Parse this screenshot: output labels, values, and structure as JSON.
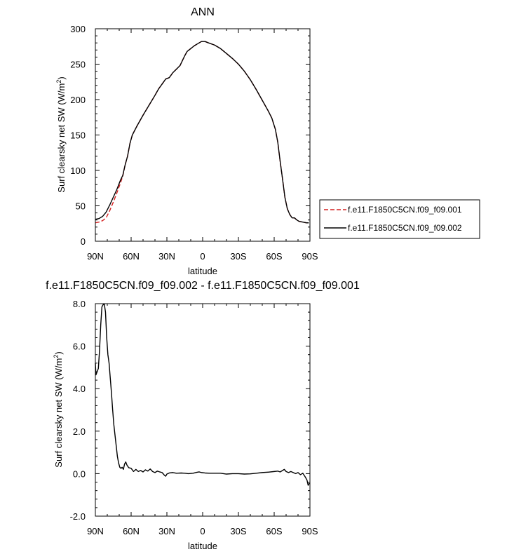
{
  "chart_data": [
    {
      "type": "line",
      "title": "ANN",
      "xlabel": "latitude",
      "ylabel_main": "Surf clearsky net SW (W/m",
      "ylabel_sup": "2",
      "ylabel_close": ")",
      "xlim": [
        90,
        -90
      ],
      "ylim": [
        0,
        300
      ],
      "x_ticks": [
        {
          "value": 90,
          "label": "90N"
        },
        {
          "value": 60,
          "label": "60N"
        },
        {
          "value": 30,
          "label": "30N"
        },
        {
          "value": 0,
          "label": "0"
        },
        {
          "value": -30,
          "label": "30S"
        },
        {
          "value": -60,
          "label": "60S"
        },
        {
          "value": -90,
          "label": "90S"
        }
      ],
      "y_ticks": [
        {
          "value": 0,
          "label": "0"
        },
        {
          "value": 50,
          "label": "50"
        },
        {
          "value": 100,
          "label": "100"
        },
        {
          "value": 150,
          "label": "150"
        },
        {
          "value": 200,
          "label": "200"
        },
        {
          "value": 250,
          "label": "250"
        },
        {
          "value": 300,
          "label": "300"
        }
      ],
      "legend_position": "right",
      "series": [
        {
          "name": "f.e11.F1850C5CN.f09_f09.001",
          "color": "#d42020",
          "dash": "dashed",
          "points": [
            [
              90,
              26
            ],
            [
              87,
              27
            ],
            [
              84,
              29
            ],
            [
              81,
              33
            ],
            [
              78,
              43
            ],
            [
              75,
              55
            ],
            [
              72,
              68
            ],
            [
              69,
              82
            ],
            [
              67,
              92
            ],
            [
              65,
              108
            ],
            [
              63,
              120
            ],
            [
              61,
              138
            ],
            [
              59,
              150
            ],
            [
              55,
              163
            ],
            [
              50,
              178
            ],
            [
              45,
              192
            ],
            [
              40,
              206
            ],
            [
              37,
              215
            ],
            [
              34,
              222
            ],
            [
              31,
              229
            ],
            [
              28,
              231
            ],
            [
              25,
              238
            ],
            [
              22,
              243
            ],
            [
              19,
              248
            ],
            [
              17,
              255
            ],
            [
              15,
              262
            ],
            [
              13,
              268
            ],
            [
              10,
              272
            ],
            [
              7,
              276
            ],
            [
              4,
              279
            ],
            [
              1,
              282
            ],
            [
              -2,
              282
            ],
            [
              -5,
              280
            ],
            [
              -10,
              277
            ],
            [
              -15,
              272
            ],
            [
              -20,
              265
            ],
            [
              -25,
              258
            ],
            [
              -30,
              250
            ],
            [
              -35,
              240
            ],
            [
              -40,
              228
            ],
            [
              -45,
              214
            ],
            [
              -50,
              199
            ],
            [
              -55,
              184
            ],
            [
              -58,
              174
            ],
            [
              -61,
              158
            ],
            [
              -63,
              140
            ],
            [
              -65,
              113
            ],
            [
              -67,
              88
            ],
            [
              -69,
              62
            ],
            [
              -71,
              46
            ],
            [
              -73,
              38
            ],
            [
              -75,
              33
            ],
            [
              -77,
              33
            ],
            [
              -79,
              30
            ],
            [
              -81,
              28
            ],
            [
              -84,
              27
            ],
            [
              -87,
              26
            ],
            [
              -89,
              26
            ]
          ]
        },
        {
          "name": "f.e11.F1850C5CN.f09_f09.002",
          "color": "#000000",
          "dash": "solid",
          "points": [
            [
              90,
              31
            ],
            [
              87,
              32
            ],
            [
              84,
              35
            ],
            [
              81,
              41
            ],
            [
              78,
              51
            ],
            [
              75,
              62
            ],
            [
              72,
              73
            ],
            [
              69,
              86
            ],
            [
              67,
              93
            ],
            [
              65,
              108
            ],
            [
              63,
              120
            ],
            [
              61,
              138
            ],
            [
              59,
              150
            ],
            [
              55,
              163
            ],
            [
              50,
              178
            ],
            [
              45,
              192
            ],
            [
              40,
              206
            ],
            [
              37,
              215
            ],
            [
              34,
              222
            ],
            [
              31,
              229
            ],
            [
              28,
              231
            ],
            [
              25,
              238
            ],
            [
              22,
              243
            ],
            [
              19,
              248
            ],
            [
              17,
              255
            ],
            [
              15,
              262
            ],
            [
              13,
              268
            ],
            [
              10,
              272
            ],
            [
              7,
              276
            ],
            [
              4,
              279
            ],
            [
              1,
              282
            ],
            [
              -2,
              282
            ],
            [
              -5,
              280
            ],
            [
              -10,
              277
            ],
            [
              -15,
              272
            ],
            [
              -20,
              265
            ],
            [
              -25,
              258
            ],
            [
              -30,
              250
            ],
            [
              -35,
              240
            ],
            [
              -40,
              228
            ],
            [
              -45,
              214
            ],
            [
              -50,
              199
            ],
            [
              -55,
              184
            ],
            [
              -58,
              174
            ],
            [
              -61,
              158
            ],
            [
              -63,
              140
            ],
            [
              -65,
              113
            ],
            [
              -67,
              88
            ],
            [
              -69,
              62
            ],
            [
              -71,
              46
            ],
            [
              -73,
              38
            ],
            [
              -75,
              33
            ],
            [
              -77,
              33
            ],
            [
              -79,
              30
            ],
            [
              -81,
              28
            ],
            [
              -84,
              27
            ],
            [
              -87,
              26
            ],
            [
              -89,
              26
            ]
          ]
        }
      ]
    },
    {
      "type": "line",
      "title": "f.e11.F1850C5CN.f09_f09.002 - f.e11.F1850C5CN.f09_f09.001",
      "xlabel": "latitude",
      "ylabel_main": "Surf clearsky net SW (W/m",
      "ylabel_sup": "2",
      "ylabel_close": ")",
      "xlim": [
        90,
        -90
      ],
      "ylim": [
        -2.0,
        8.0
      ],
      "x_ticks": [
        {
          "value": 90,
          "label": "90N"
        },
        {
          "value": 60,
          "label": "60N"
        },
        {
          "value": 30,
          "label": "30N"
        },
        {
          "value": 0,
          "label": "0"
        },
        {
          "value": -30,
          "label": "30S"
        },
        {
          "value": -60,
          "label": "60S"
        },
        {
          "value": -90,
          "label": "90S"
        }
      ],
      "y_ticks": [
        {
          "value": -2.0,
          "label": "-2.0"
        },
        {
          "value": 0.0,
          "label": "0.0"
        },
        {
          "value": 2.0,
          "label": "2.0"
        },
        {
          "value": 4.0,
          "label": "4.0"
        },
        {
          "value": 6.0,
          "label": "6.0"
        },
        {
          "value": 8.0,
          "label": "8.0"
        }
      ],
      "series": [
        {
          "color": "#000000",
          "dash": "solid",
          "points": [
            [
              90,
              5.2
            ],
            [
              89.5,
              4.65
            ],
            [
              88.5,
              4.8
            ],
            [
              87.5,
              4.95
            ],
            [
              86.5,
              5.8
            ],
            [
              85.5,
              7.0
            ],
            [
              84.5,
              7.85
            ],
            [
              83.5,
              7.95
            ],
            [
              82.5,
              7.98
            ],
            [
              81.5,
              7.6
            ],
            [
              80.5,
              6.4
            ],
            [
              79.5,
              5.6
            ],
            [
              78.5,
              5.2
            ],
            [
              77.5,
              4.5
            ],
            [
              76.5,
              3.8
            ],
            [
              75.5,
              3.0
            ],
            [
              74.5,
              2.3
            ],
            [
              73.5,
              1.8
            ],
            [
              72.5,
              1.3
            ],
            [
              71.5,
              0.8
            ],
            [
              70.5,
              0.5
            ],
            [
              69.5,
              0.3
            ],
            [
              68.5,
              0.25
            ],
            [
              67.5,
              0.3
            ],
            [
              66.5,
              0.2
            ],
            [
              65.5,
              0.45
            ],
            [
              64.5,
              0.55
            ],
            [
              63.5,
              0.4
            ],
            [
              62,
              0.28
            ],
            [
              60,
              0.25
            ],
            [
              58,
              0.1
            ],
            [
              56,
              0.2
            ],
            [
              54,
              0.1
            ],
            [
              52,
              0.15
            ],
            [
              50,
              0.08
            ],
            [
              48,
              0.18
            ],
            [
              46,
              0.12
            ],
            [
              44,
              0.22
            ],
            [
              42,
              0.1
            ],
            [
              40,
              0.05
            ],
            [
              38,
              0.12
            ],
            [
              36,
              0.08
            ],
            [
              34,
              0.05
            ],
            [
              32,
              -0.08
            ],
            [
              31,
              -0.12
            ],
            [
              30,
              -0.02
            ],
            [
              28,
              0.03
            ],
            [
              25,
              0.05
            ],
            [
              22,
              0.02
            ],
            [
              18,
              0.03
            ],
            [
              15,
              0.02
            ],
            [
              12,
              0.0
            ],
            [
              8,
              0.02
            ],
            [
              5,
              0.06
            ],
            [
              3,
              0.08
            ],
            [
              1,
              0.05
            ],
            [
              -2,
              0.03
            ],
            [
              -6,
              0.02
            ],
            [
              -10,
              0.02
            ],
            [
              -15,
              0.02
            ],
            [
              -20,
              -0.02
            ],
            [
              -25,
              0.0
            ],
            [
              -30,
              0.0
            ],
            [
              -35,
              -0.02
            ],
            [
              -40,
              -0.01
            ],
            [
              -45,
              0.02
            ],
            [
              -50,
              0.05
            ],
            [
              -55,
              0.07
            ],
            [
              -60,
              0.1
            ],
            [
              -63,
              0.12
            ],
            [
              -65,
              0.08
            ],
            [
              -67,
              0.15
            ],
            [
              -68.5,
              0.2
            ],
            [
              -70,
              0.1
            ],
            [
              -72,
              0.05
            ],
            [
              -74,
              0.1
            ],
            [
              -76,
              0.05
            ],
            [
              -78,
              0.0
            ],
            [
              -80,
              0.05
            ],
            [
              -82,
              -0.05
            ],
            [
              -84,
              0.02
            ],
            [
              -86,
              -0.15
            ],
            [
              -87.5,
              -0.3
            ],
            [
              -88.5,
              -0.55
            ],
            [
              -89.5,
              -0.45
            ]
          ]
        }
      ]
    }
  ]
}
